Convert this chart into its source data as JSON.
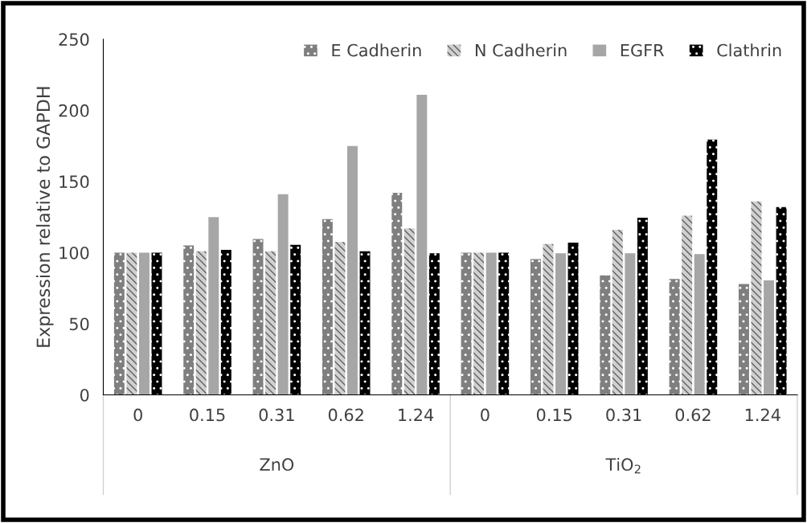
{
  "chart_data": {
    "type": "bar",
    "ylabel": "Expression relative to GAPDH",
    "categories": [
      "0",
      "0.15",
      "0.31",
      "0.62",
      "1.24",
      "0",
      "0.15",
      "0.31",
      "0.62",
      "1.24"
    ],
    "series": [
      {
        "name": "E Cadherin",
        "color": "#7f7f7f",
        "values": [
          100,
          105,
          109.5,
          123.5,
          142,
          100,
          95.5,
          84,
          81.5,
          78
        ]
      },
      {
        "name": "N Cadherin",
        "color": "#d0d0d0",
        "values": [
          100,
          101,
          101,
          107.5,
          117,
          100,
          106,
          116,
          126,
          136
        ]
      },
      {
        "name": "EGFR",
        "color": "#a6a6a6",
        "values": [
          100,
          125,
          141,
          175,
          211,
          100,
          99.5,
          99.5,
          99,
          80.5
        ]
      },
      {
        "name": "Clathrin",
        "color": "#000000",
        "values": [
          100,
          102,
          105.5,
          101,
          99.5,
          100,
          107,
          124.5,
          179.5,
          132
        ]
      }
    ],
    "annotations": [
      "ZnO",
      "TiO$_{2}$"
    ],
    "ylim": [
      0,
      250
    ],
    "yticks": [
      0,
      50,
      100,
      150,
      200,
      250
    ],
    "grid": false,
    "legend": "top right"
  }
}
